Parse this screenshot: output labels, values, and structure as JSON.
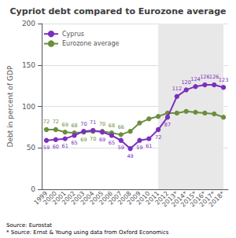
{
  "chart_data": {
    "type": "line",
    "title": "Cypriot debt compared to Eurozone average",
    "y_label": "Debt in percent of GDP",
    "categories": [
      "1999",
      "2000",
      "2001",
      "2002",
      "2003",
      "2004",
      "2005",
      "2006",
      "2007",
      "2008",
      "2009",
      "2010",
      "2011",
      "2012",
      "2013*",
      "2014*",
      "2015*",
      "2016*",
      "2017*",
      "2018*"
    ],
    "series": [
      {
        "name": "Cyprus",
        "color": "#7B2FBE",
        "marker": "circle",
        "data_labels": true,
        "values": [
          59,
          60,
          61,
          65,
          70,
          71,
          69,
          65,
          59,
          49,
          59,
          61,
          72,
          87,
          112,
          120,
          124,
          126,
          126,
          123
        ]
      },
      {
        "name": "Eurozone average",
        "color": "#6B8E3E",
        "marker": "circle",
        "data_labels": true,
        "values": [
          72,
          72,
          69,
          68,
          69,
          70,
          70,
          68,
          66,
          70,
          80,
          85,
          88,
          92,
          92,
          94,
          93,
          92,
          91,
          87
        ],
        "value_labels": [
          "72",
          "72",
          "69",
          "68",
          "69",
          "70",
          "70",
          "68",
          "66",
          null,
          null,
          null,
          null,
          null,
          null,
          null,
          null,
          null,
          null,
          null
        ]
      }
    ],
    "shaded_region": {
      "from": "2011",
      "to": "2018*",
      "color": "#e8e8e8"
    },
    "ylim": [
      0,
      200
    ],
    "yticks": [
      0,
      50,
      100,
      150,
      200
    ],
    "grid": true,
    "legend": "upper left",
    "annotations": [
      "Source: Eurostat",
      "* Source: Ernst & Young using data from Oxford Economics"
    ]
  }
}
